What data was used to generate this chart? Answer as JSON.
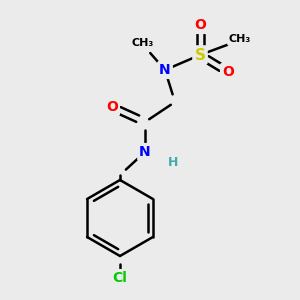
{
  "bg_color": "#ebebeb",
  "atom_colors": {
    "C": "#000000",
    "N": "#0000ff",
    "O": "#ff0000",
    "S": "#cccc00",
    "Cl": "#00cc00",
    "H": "#44aaaa"
  },
  "bond_color": "#000000",
  "bond_width": 1.8,
  "font_size_atom": 10,
  "font_size_label": 9,
  "methyl_fontsize": 9
}
